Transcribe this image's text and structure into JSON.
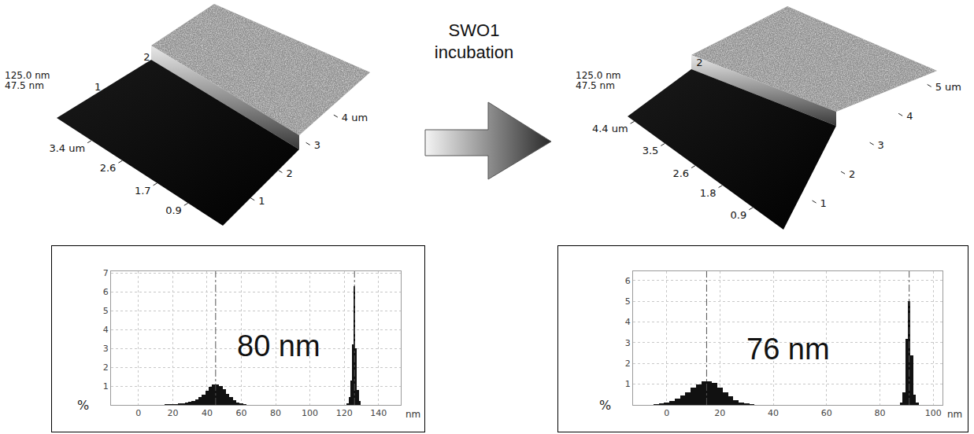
{
  "arrow_label": "SWO1 incubation",
  "afm_images": [
    {
      "z_labels": [
        "125.0 nm",
        "47.5 nm"
      ],
      "front_axis": {
        "lim": [
          0,
          4.3
        ],
        "ticks": [
          {
            "value": 3.4,
            "label": "3.4 um"
          },
          2.6,
          1.7,
          0.9
        ]
      },
      "right_axis": {
        "lim": [
          0,
          4.6
        ],
        "ticks": [
          1,
          2,
          3,
          {
            "value": 4,
            "label": "4 um"
          }
        ]
      },
      "back_axis": {
        "lim": [
          0,
          3.5
        ],
        "ticks": [
          1,
          2
        ]
      }
    },
    {
      "z_labels": [
        "125.0 nm",
        "47.5 nm"
      ],
      "front_axis": {
        "lim": [
          0,
          4.6
        ],
        "ticks": [
          {
            "value": 4.4,
            "label": "4.4 um"
          },
          3.5,
          2.6,
          1.8,
          0.9
        ]
      },
      "right_axis": {
        "lim": [
          0,
          5.2
        ],
        "ticks": [
          1,
          2,
          3,
          4,
          {
            "value": 5,
            "label": "5 um"
          }
        ]
      },
      "back_axis": {
        "lim": [
          0,
          4.2
        ],
        "ticks": [
          2
        ]
      }
    }
  ],
  "chart_data": [
    {
      "type": "bar",
      "x": [
        14,
        16,
        18,
        20,
        22,
        24,
        26,
        28,
        30,
        32,
        34,
        36,
        38,
        40,
        42,
        44,
        46,
        48,
        50,
        52,
        54,
        56,
        58,
        60,
        62,
        64,
        122,
        123,
        124,
        125,
        126,
        127,
        128,
        129
      ],
      "values": [
        0.02,
        0.03,
        0.04,
        0.05,
        0.06,
        0.08,
        0.1,
        0.12,
        0.15,
        0.2,
        0.28,
        0.4,
        0.55,
        0.75,
        0.95,
        1.08,
        1.1,
        1.0,
        0.82,
        0.6,
        0.4,
        0.25,
        0.14,
        0.07,
        0.03,
        0.01,
        0.1,
        0.4,
        1.3,
        3.2,
        6.3,
        3.0,
        0.8,
        0.2
      ],
      "color": "#111111",
      "xlim": [
        -16,
        153
      ],
      "xticks": [
        0,
        20,
        40,
        60,
        80,
        100,
        120,
        140
      ],
      "ylim": [
        0,
        7.1
      ],
      "yticks": [
        1,
        2,
        3,
        4,
        5,
        6,
        7
      ],
      "xlabel": "nm",
      "ylabel": "%",
      "grid": true,
      "peaks": [
        45,
        126
      ],
      "annotation": "80 nm"
    },
    {
      "type": "bar",
      "x": [
        -6,
        -4,
        -2,
        0,
        2,
        4,
        6,
        8,
        10,
        12,
        14,
        16,
        18,
        20,
        22,
        24,
        26,
        28,
        30,
        32,
        34,
        88,
        89,
        90,
        91,
        92,
        93,
        94
      ],
      "values": [
        0.01,
        0.03,
        0.06,
        0.12,
        0.2,
        0.3,
        0.45,
        0.62,
        0.82,
        1.0,
        1.12,
        1.15,
        1.05,
        0.85,
        0.62,
        0.4,
        0.24,
        0.13,
        0.06,
        0.03,
        0.01,
        0.1,
        0.6,
        3.2,
        5.0,
        2.4,
        0.5,
        0.1
      ],
      "color": "#111111",
      "xlim": [
        -12.6,
        103.5
      ],
      "xticks": [
        0,
        20,
        40,
        60,
        80,
        100
      ],
      "ylim": [
        0,
        6.45
      ],
      "yticks": [
        1,
        2,
        3,
        4,
        5,
        6
      ],
      "xlabel": "nm",
      "ylabel": "%",
      "grid": true,
      "peaks": [
        15,
        91
      ],
      "annotation": "76 nm"
    }
  ]
}
